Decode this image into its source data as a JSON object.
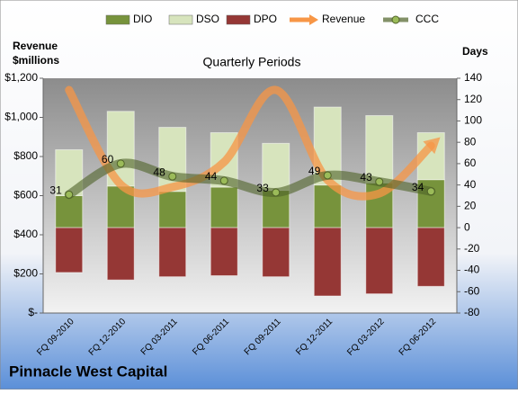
{
  "chart_data": {
    "type": "combo",
    "title": "Quarterly Periods",
    "subtitle": "Pinnacle West Capital",
    "y_label": "Revenue\n$millions",
    "y2_label": "Days",
    "categories": [
      "FQ 09-2010",
      "FQ 12-2010",
      "FQ 03-2011",
      "FQ 06-2011",
      "FQ 09-2011",
      "FQ 12-2011",
      "FQ 03-2012",
      "FQ 06-2012"
    ],
    "series": [
      {
        "name": "DIO",
        "kind": "bar",
        "axis": "y2",
        "color": "#77933c",
        "values": [
          30,
          39,
          34,
          38,
          35,
          40,
          42,
          45
        ]
      },
      {
        "name": "DSO",
        "kind": "bar",
        "axis": "y2",
        "color": "#d7e4bd",
        "values": [
          43,
          70,
          60,
          51,
          44,
          73,
          63,
          44
        ]
      },
      {
        "name": "DPO",
        "kind": "bar",
        "axis": "y2",
        "color": "#953735",
        "values": [
          -42,
          -49,
          -46,
          -45,
          -46,
          -64,
          -62,
          -55
        ]
      },
      {
        "name": "Revenue",
        "kind": "line",
        "color": "#f79646",
        "values": [
          1140,
          657,
          644,
          772,
          1140,
          680,
          611,
          855
        ]
      },
      {
        "name": "CCC",
        "kind": "line",
        "axis": "y2",
        "color": "#4f6228",
        "values": [
          31,
          60,
          48,
          44,
          33,
          49,
          43,
          34
        ]
      }
    ],
    "ylim": [
      0,
      1200
    ],
    "yticks": [
      {
        "value": 0,
        "label": "$-"
      },
      {
        "value": 200,
        "label": "$200"
      },
      {
        "value": 400,
        "label": "$400"
      },
      {
        "value": 600,
        "label": "$600"
      },
      {
        "value": 800,
        "label": "$800"
      },
      {
        "value": 1000,
        "label": "$1,000"
      },
      {
        "value": 1200,
        "label": "$1,200"
      }
    ],
    "y2lim": [
      -80,
      140
    ],
    "y2ticks": [
      -80,
      -60,
      -40,
      -20,
      0,
      20,
      40,
      60,
      80,
      100,
      120,
      140
    ]
  }
}
